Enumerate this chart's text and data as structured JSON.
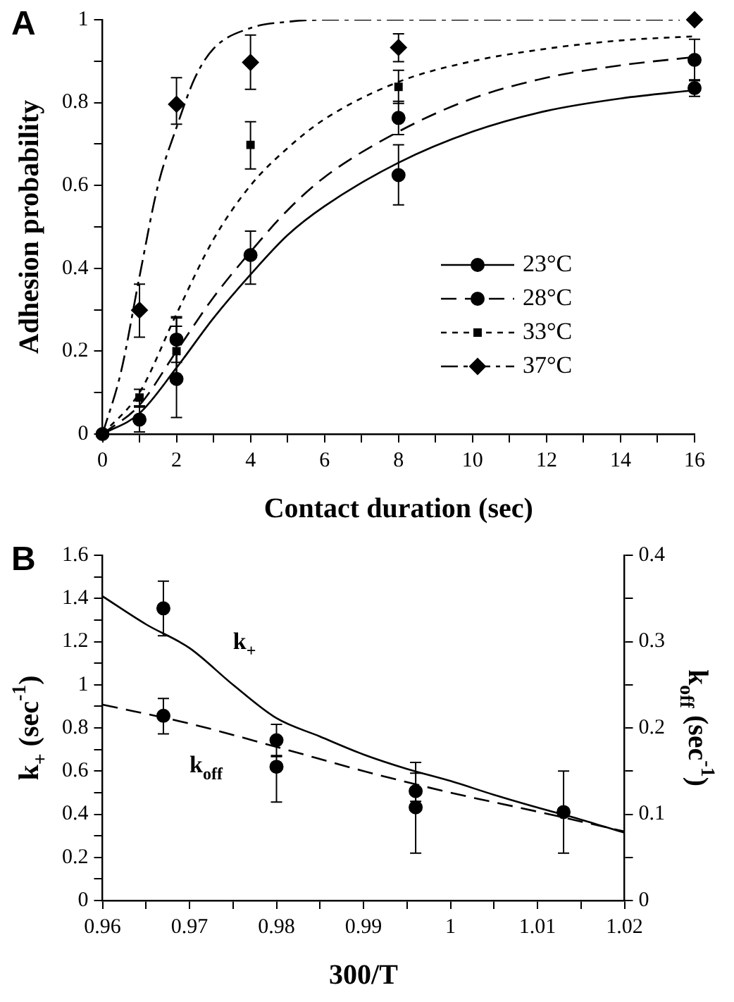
{
  "chart_data": [
    {
      "type": "scatter",
      "xlabel": "Contact duration (sec)",
      "ylabel": "Adhesion probability",
      "legend": "bottom right",
      "grid": false,
      "annotations": [
        "A"
      ],
      "xlim": [
        0,
        16
      ],
      "xticks": [
        0,
        {
          "value": 1,
          "label": null
        },
        2,
        {
          "value": 3,
          "label": null
        },
        4,
        {
          "value": 5,
          "label": null
        },
        6,
        {
          "value": 7,
          "label": null
        },
        8,
        {
          "value": 9,
          "label": null
        },
        10,
        {
          "value": 11,
          "label": null
        },
        12,
        {
          "value": 13,
          "label": null
        },
        14,
        {
          "value": 15,
          "label": null
        },
        16
      ],
      "ylim": [
        0,
        1
      ],
      "yticks": [
        0,
        {
          "value": 0.1,
          "label": null
        },
        0.2,
        {
          "value": 0.3,
          "label": null
        },
        0.4,
        {
          "value": 0.5,
          "label": null
        },
        0.6,
        {
          "value": 0.7,
          "label": null
        },
        0.8,
        {
          "value": 0.9,
          "label": null
        },
        1
      ],
      "series": [
        {
          "type": "line",
          "color": "#000000",
          "line_style": "solid",
          "marker": "none",
          "x": [
            0,
            1,
            2,
            3,
            4,
            5,
            6,
            8,
            10,
            12,
            14,
            16
          ],
          "values": [
            0,
            0.05,
            0.16,
            0.28,
            0.385,
            0.48,
            0.55,
            0.655,
            0.73,
            0.78,
            0.81,
            0.83
          ]
        },
        {
          "type": "line",
          "color": "#000000",
          "line_style": "dashed",
          "marker": "none",
          "x": [
            0,
            1,
            2,
            3,
            4,
            5,
            6,
            8,
            10,
            12,
            14,
            16
          ],
          "values": [
            0,
            0.07,
            0.2,
            0.33,
            0.44,
            0.54,
            0.62,
            0.73,
            0.81,
            0.86,
            0.89,
            0.91
          ]
        },
        {
          "type": "line",
          "color": "#000000",
          "line_style": "dotted",
          "marker": "none",
          "x": [
            0,
            1,
            2,
            3,
            4,
            5,
            6,
            8,
            10,
            12,
            14,
            16
          ],
          "values": [
            0,
            0.1,
            0.29,
            0.47,
            0.6,
            0.69,
            0.76,
            0.85,
            0.9,
            0.93,
            0.95,
            0.96
          ]
        },
        {
          "type": "line",
          "color": "#000000",
          "line_style": "dashdot",
          "marker": "none",
          "x": [
            0,
            0.5,
            1,
            1.5,
            2,
            2.5,
            3,
            4,
            5,
            6,
            15.6
          ],
          "values": [
            0,
            0.15,
            0.38,
            0.6,
            0.74,
            0.86,
            0.93,
            0.98,
            0.995,
            1,
            1
          ]
        },
        {
          "name": "23°C",
          "color": "#000000",
          "marker": "circle",
          "line_style": "solid",
          "x": [
            1,
            2,
            8,
            16
          ],
          "values": [
            0.035,
            0.133,
            0.625,
            0.835
          ],
          "errors": [
            0.03,
            [
              0.04,
              0.28
            ],
            [
              0.553,
              0.698
            ],
            0.02
          ]
        },
        {
          "name": "28°C",
          "color": "#000000",
          "marker": "circle",
          "line_style": "dashed",
          "x": [
            0,
            2,
            4,
            8,
            16
          ],
          "values": [
            0,
            0.228,
            0.432,
            0.763,
            0.903
          ],
          "errors": [
            null,
            0.055,
            [
              0.362,
              0.49
            ],
            0.04,
            0.05
          ]
        },
        {
          "name": "33°C",
          "color": "#000000",
          "marker": "square",
          "line_style": "dotted",
          "x": [
            1,
            2,
            4,
            8
          ],
          "values": [
            0.088,
            0.2,
            0.698,
            0.838
          ],
          "errors": [
            0.02,
            0.06,
            [
              0.64,
              0.754
            ],
            0.04
          ]
        },
        {
          "name": "37°C",
          "color": "#000000",
          "marker": "diamond",
          "line_style": "dashdot",
          "x": [
            1,
            2,
            4,
            8,
            16
          ],
          "values": [
            0.299,
            0.796,
            0.897,
            0.933,
            1
          ],
          "errors": [
            [
              0.234,
              0.362
            ],
            [
              0.748,
              0.86
            ],
            [
              0.832,
              0.963
            ],
            [
              0.899,
              0.966
            ],
            null
          ]
        }
      ]
    },
    {
      "type": "scatter",
      "xlabel": "300/T",
      "ylabel": "k$_{+}$ (sec$^{-1}$)",
      "y2label": "k$_{off}$ (sec$^{-1}$)",
      "grid": false,
      "annotations": [
        "B"
      ],
      "xlim": [
        0.96,
        1.02
      ],
      "xticks": [
        0.96,
        {
          "value": 0.965,
          "label": null
        },
        0.97,
        {
          "value": 0.975,
          "label": null
        },
        0.98,
        {
          "value": 0.985,
          "label": null
        },
        0.99,
        {
          "value": 0.995,
          "label": null
        },
        1,
        {
          "value": 1.005,
          "label": null
        },
        1.01,
        {
          "value": 1.015,
          "label": null
        },
        1.02
      ],
      "ylim": [
        0,
        1.6
      ],
      "yticks": [
        0,
        {
          "value": 0.1,
          "label": null
        },
        0.2,
        {
          "value": 0.3,
          "label": null
        },
        0.4,
        {
          "value": 0.5,
          "label": null
        },
        0.6,
        {
          "value": 0.7,
          "label": null
        },
        0.8,
        {
          "value": 0.9,
          "label": null
        },
        1,
        {
          "value": 1.1,
          "label": null
        },
        1.2,
        {
          "value": 1.3,
          "label": null
        },
        1.4,
        {
          "value": 1.5,
          "label": null
        },
        1.6
      ],
      "y2lim": [
        0,
        0.4
      ],
      "y2ticks": [
        0,
        {
          "value": 0.05,
          "label": null
        },
        0.1,
        {
          "value": 0.15,
          "label": null
        },
        0.2,
        {
          "value": 0.25,
          "label": null
        },
        0.3,
        {
          "value": 0.35,
          "label": null
        },
        0.4
      ],
      "series": [
        {
          "name": "k$_{+}$",
          "type": "line",
          "color": "#000000",
          "line_style": "solid",
          "marker": "none",
          "x": [
            0.96,
            0.965,
            0.97,
            0.975,
            0.98,
            0.985,
            0.99,
            0.995,
            1,
            1.005,
            1.01,
            1.015,
            1.02
          ],
          "values": [
            1.41,
            1.28,
            1.17,
            1.0,
            0.845,
            0.76,
            0.677,
            0.61,
            0.554,
            0.49,
            0.431,
            0.375,
            0.314
          ]
        },
        {
          "name": "k$_{off}$",
          "type": "line",
          "axis": "y2",
          "color": "#000000",
          "line_style": "dashed",
          "marker": "none",
          "x": [
            0.96,
            0.97,
            0.98,
            0.99,
            1,
            1.01,
            1.02
          ],
          "values": [
            0.227,
            0.205,
            0.178,
            0.15,
            0.125,
            0.103,
            0.08
          ]
        },
        {
          "color": "#000000",
          "marker": "circle",
          "x": [
            0.967,
            0.98,
            0.996,
            1.013
          ],
          "values": [
            1.354,
            0.743,
            0.507,
            0.41
          ],
          "errors": [
            [
              1.227,
              1.48
            ],
            [
              0.667,
              0.816
            ],
            [
              0.46,
              0.59
            ],
            [
              0.22,
              0.6
            ]
          ]
        },
        {
          "axis": "y2",
          "color": "#000000",
          "marker": "circle",
          "x": [
            0.967,
            0.98,
            0.996
          ],
          "values": [
            0.214,
            0.155,
            0.108
          ],
          "errors": [
            [
              0.193,
              0.234
            ],
            [
              0.114,
              0.168
            ],
            [
              0.055,
              0.16
            ]
          ]
        }
      ]
    }
  ]
}
